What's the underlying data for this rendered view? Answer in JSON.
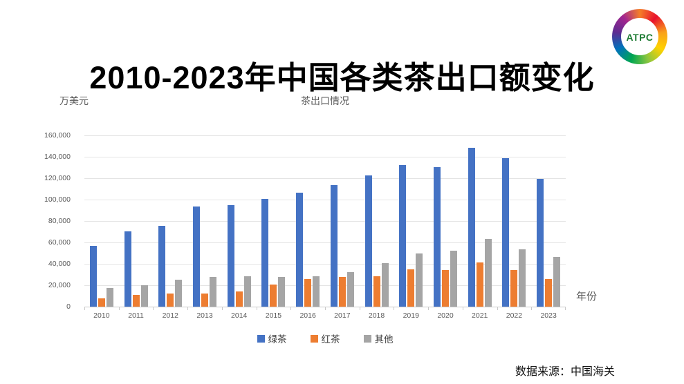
{
  "page": {
    "title": "2010-2023年中国各类茶出口额变化",
    "source_note": "数据来源：中国海关"
  },
  "logo": {
    "text": "ATPC",
    "text_color": "#1e7b34",
    "ring_colors": [
      "#f57f29",
      "#e8112d",
      "#f9a11b",
      "#ffd200",
      "#8cc63f",
      "#00a651",
      "#0072bc",
      "#5c2d91",
      "#a3258f"
    ]
  },
  "chart_data": {
    "type": "bar",
    "title": "茶出口情况",
    "unit_label": "万美元",
    "xlabel": "年份",
    "ylabel": "",
    "categories": [
      "2010",
      "2011",
      "2012",
      "2013",
      "2014",
      "2015",
      "2016",
      "2017",
      "2018",
      "2019",
      "2020",
      "2021",
      "2022",
      "2023"
    ],
    "series": [
      {
        "name": "绿茶",
        "color": "#4472C4",
        "values": [
          56500,
          70500,
          75500,
          93500,
          95000,
          100500,
          106500,
          113500,
          122500,
          132500,
          130000,
          148500,
          139000,
          119500
        ]
      },
      {
        "name": "红茶",
        "color": "#ED7D31",
        "values": [
          8000,
          11000,
          12000,
          12500,
          14000,
          20500,
          25500,
          28000,
          28500,
          35000,
          34500,
          41500,
          34000,
          25500
        ]
      },
      {
        "name": "其他",
        "color": "#A5A5A5",
        "values": [
          17500,
          20000,
          25000,
          28000,
          28500,
          27500,
          28500,
          32000,
          40500,
          49500,
          52000,
          63000,
          53500,
          46500
        ]
      }
    ],
    "ylim": [
      0,
      160000
    ],
    "ytick_labels": [
      "0",
      "20,000",
      "40,000",
      "60,000",
      "80,000",
      "100,000",
      "120,000",
      "140,000",
      "160,000"
    ],
    "grid": true,
    "legend_position": "bottom"
  }
}
